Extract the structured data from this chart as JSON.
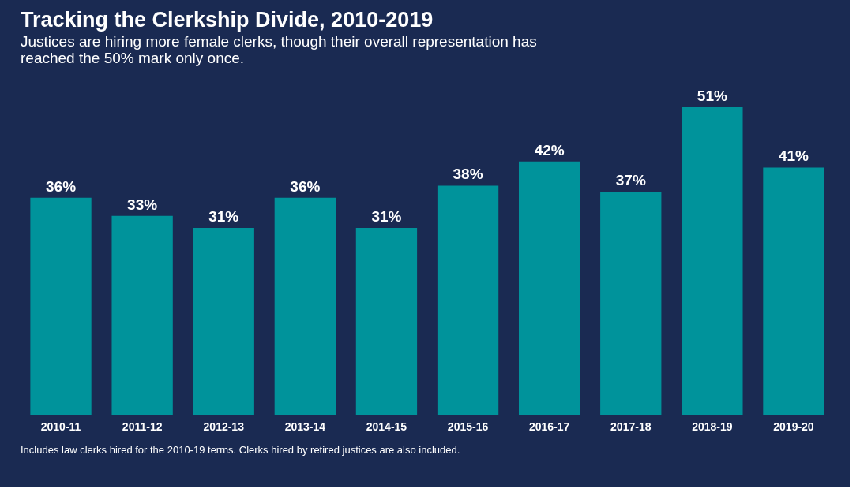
{
  "chart_data": {
    "type": "bar",
    "title": "Tracking the Clerkship Divide, 2010-2019",
    "subtitle": "Justices are hiring more female clerks, though their overall representation has reached the 50% mark only once.",
    "categories": [
      "2010-11",
      "2011-12",
      "2012-13",
      "2013-14",
      "2014-15",
      "2015-16",
      "2016-17",
      "2017-18",
      "2018-19",
      "2019-20"
    ],
    "values": [
      36,
      33,
      31,
      36,
      31,
      38,
      42,
      37,
      51,
      41
    ],
    "value_labels": [
      "36%",
      "33%",
      "31%",
      "36%",
      "31%",
      "38%",
      "42%",
      "37%",
      "51%",
      "41%"
    ],
    "color": "#00939b",
    "grid": false,
    "annotations": [
      "Includes law clerks hired for the 2010-19 terms. Clerks hired by retired justices are also included."
    ]
  }
}
